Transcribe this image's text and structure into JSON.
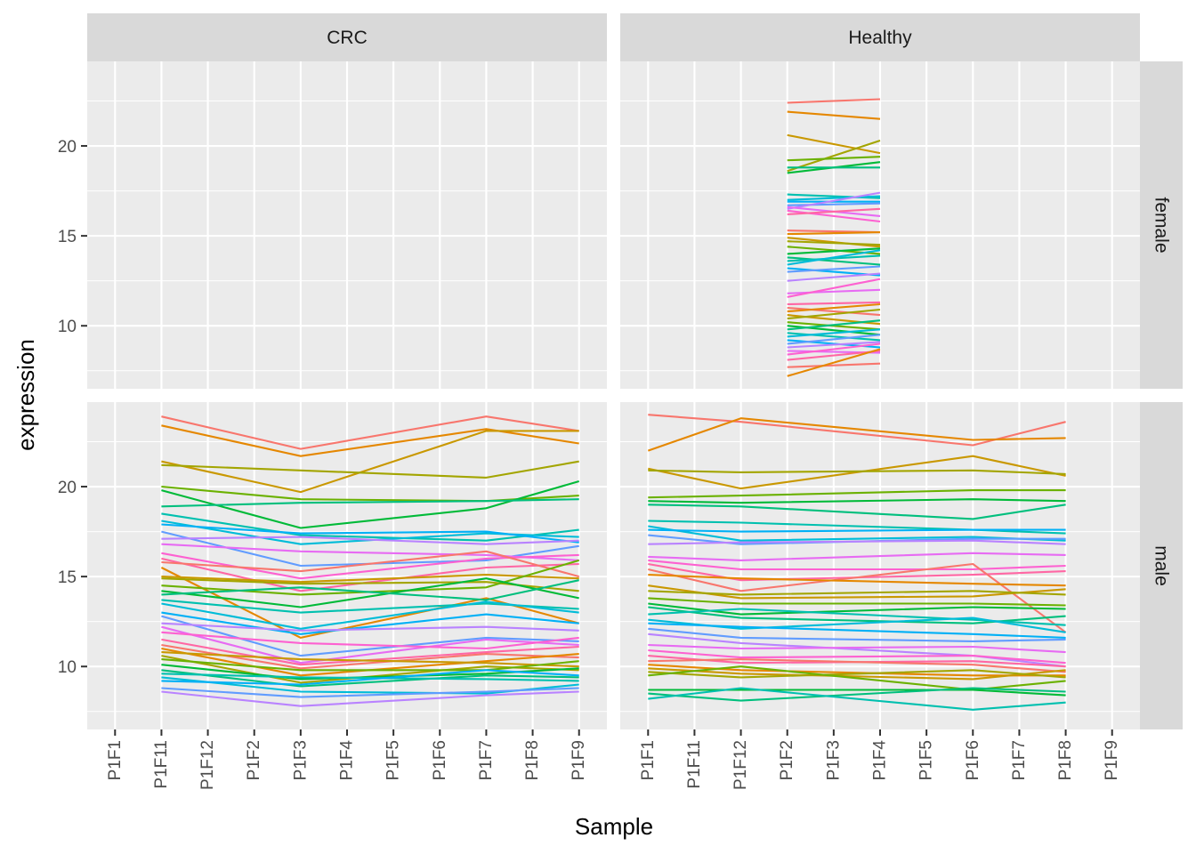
{
  "chart_data": {
    "type": "line",
    "xlabel": "Sample",
    "ylabel": "expression",
    "x_categories": [
      "P1F1",
      "P1F11",
      "P1F12",
      "P1F2",
      "P1F3",
      "P1F4",
      "P1F5",
      "P1F6",
      "P1F7",
      "P1F8",
      "P1F9"
    ],
    "y_ticks": [
      10,
      15,
      20
    ],
    "ylim": [
      6.5,
      24.7
    ],
    "grid": true,
    "legend": "none",
    "facet_columns": [
      "CRC",
      "Healthy"
    ],
    "facet_rows": [
      "female",
      "male"
    ],
    "palette": [
      "#F8766D",
      "#E58700",
      "#C99800",
      "#A3A500",
      "#6BB100",
      "#00BA38",
      "#00BF7D",
      "#00C0AF",
      "#00BCD8",
      "#00B0F6",
      "#619CFF",
      "#B983FF",
      "#E76BF3",
      "#FD61D1",
      "#FF67A4"
    ],
    "panels": [
      {
        "column": "CRC",
        "row": "female",
        "x": [],
        "series": []
      },
      {
        "column": "Healthy",
        "row": "female",
        "x": [
          "P1F2",
          "P1F4"
        ],
        "series": [
          {
            "values": [
              22.4,
              22.6
            ]
          },
          {
            "values": [
              21.9,
              21.5
            ]
          },
          {
            "values": [
              20.6,
              19.6
            ]
          },
          {
            "values": [
              18.6,
              20.3
            ]
          },
          {
            "values": [
              19.2,
              19.4
            ]
          },
          {
            "values": [
              18.5,
              19.1
            ]
          },
          {
            "values": [
              18.8,
              18.8
            ]
          },
          {
            "values": [
              17.3,
              17.1
            ]
          },
          {
            "values": [
              17.0,
              17.2
            ]
          },
          {
            "values": [
              16.9,
              16.9
            ]
          },
          {
            "values": [
              16.7,
              16.8
            ]
          },
          {
            "values": [
              16.5,
              17.4
            ]
          },
          {
            "values": [
              16.6,
              16.1
            ]
          },
          {
            "values": [
              16.4,
              15.8
            ]
          },
          {
            "values": [
              16.2,
              16.5
            ]
          },
          {
            "values": [
              15.3,
              15.2
            ]
          },
          {
            "values": [
              15.1,
              15.2
            ]
          },
          {
            "values": [
              14.9,
              14.4
            ]
          },
          {
            "values": [
              14.7,
              14.5
            ]
          },
          {
            "values": [
              14.4,
              14.0
            ]
          },
          {
            "values": [
              14.0,
              14.3
            ]
          },
          {
            "values": [
              13.8,
              13.4
            ]
          },
          {
            "values": [
              13.6,
              13.9
            ]
          },
          {
            "values": [
              13.4,
              14.2
            ]
          },
          {
            "values": [
              13.2,
              12.8
            ]
          },
          {
            "values": [
              13.0,
              13.3
            ]
          },
          {
            "values": [
              12.5,
              12.9
            ]
          },
          {
            "values": [
              11.8,
              12.0
            ]
          },
          {
            "values": [
              11.6,
              12.6
            ]
          },
          {
            "values": [
              11.2,
              11.3
            ]
          },
          {
            "values": [
              11.0,
              10.6
            ]
          },
          {
            "values": [
              10.8,
              11.2
            ]
          },
          {
            "values": [
              10.6,
              10.1
            ]
          },
          {
            "values": [
              10.4,
              10.9
            ]
          },
          {
            "values": [
              10.2,
              9.8
            ]
          },
          {
            "values": [
              10.0,
              9.5
            ]
          },
          {
            "values": [
              9.8,
              10.3
            ]
          },
          {
            "values": [
              9.6,
              9.2
            ]
          },
          {
            "values": [
              9.4,
              9.8
            ]
          },
          {
            "values": [
              9.2,
              8.8
            ]
          },
          {
            "values": [
              9.0,
              9.5
            ]
          },
          {
            "values": [
              8.8,
              9.1
            ]
          },
          {
            "values": [
              8.6,
              8.5
            ]
          },
          {
            "values": [
              8.4,
              9.0
            ]
          },
          {
            "values": [
              8.1,
              8.6
            ]
          },
          {
            "values": [
              7.7,
              7.9
            ]
          },
          {
            "values": [
              7.2,
              8.7
            ]
          }
        ]
      },
      {
        "column": "CRC",
        "row": "male",
        "x": [
          "P1F11",
          "P1F3",
          "P1F7",
          "P1F9"
        ],
        "series": [
          {
            "values": [
              23.9,
              22.1,
              23.9,
              23.1
            ]
          },
          {
            "values": [
              23.4,
              21.7,
              23.2,
              22.4
            ]
          },
          {
            "values": [
              21.4,
              19.7,
              23.1,
              23.1
            ]
          },
          {
            "values": [
              21.2,
              20.9,
              20.5,
              21.4
            ]
          },
          {
            "values": [
              20.0,
              19.3,
              19.2,
              19.5
            ]
          },
          {
            "values": [
              19.8,
              17.7,
              18.8,
              20.3
            ]
          },
          {
            "values": [
              18.9,
              19.1,
              19.2,
              19.3
            ]
          },
          {
            "values": [
              18.5,
              17.3,
              17.0,
              17.6
            ]
          },
          {
            "values": [
              18.1,
              16.8,
              17.4,
              17.2
            ]
          },
          {
            "values": [
              17.9,
              17.4,
              17.5,
              16.9
            ]
          },
          {
            "values": [
              17.5,
              15.6,
              15.9,
              16.7
            ]
          },
          {
            "values": [
              17.1,
              17.2,
              16.8,
              17.0
            ]
          },
          {
            "values": [
              16.8,
              16.4,
              16.2,
              15.9
            ]
          },
          {
            "values": [
              16.3,
              14.9,
              16.0,
              16.2
            ]
          },
          {
            "values": [
              16.0,
              14.2,
              15.5,
              15.7
            ]
          },
          {
            "values": [
              15.8,
              15.3,
              16.4,
              15.0
            ]
          },
          {
            "values": [
              15.5,
              11.6,
              13.8,
              12.4
            ]
          },
          {
            "values": [
              15.0,
              14.7,
              15.1,
              14.9
            ]
          },
          {
            "values": [
              14.9,
              14.6,
              14.7,
              14.2
            ]
          },
          {
            "values": [
              14.5,
              14.0,
              14.4,
              15.9
            ]
          },
          {
            "values": [
              14.2,
              13.3,
              14.9,
              13.8
            ]
          },
          {
            "values": [
              14.0,
              14.4,
              13.7,
              14.8
            ]
          },
          {
            "values": [
              13.7,
              13.0,
              13.5,
              13.2
            ]
          },
          {
            "values": [
              13.5,
              12.1,
              13.6,
              13.0
            ]
          },
          {
            "values": [
              13.0,
              11.8,
              12.9,
              12.4
            ]
          },
          {
            "values": [
              12.8,
              10.6,
              11.6,
              11.4
            ]
          },
          {
            "values": [
              12.4,
              12.0,
              12.2,
              12.0
            ]
          },
          {
            "values": [
              12.2,
              10.2,
              11.5,
              11.2
            ]
          },
          {
            "values": [
              11.9,
              11.3,
              11.0,
              11.6
            ]
          },
          {
            "values": [
              11.5,
              10.1,
              10.8,
              11.1
            ]
          },
          {
            "values": [
              11.2,
              9.9,
              10.7,
              10.5
            ]
          },
          {
            "values": [
              11.0,
              9.5,
              10.3,
              10.7
            ]
          },
          {
            "values": [
              10.8,
              10.4,
              10.2,
              10.0
            ]
          },
          {
            "values": [
              10.6,
              9.1,
              10.0,
              9.8
            ]
          },
          {
            "values": [
              10.4,
              9.8,
              9.8,
              10.3
            ]
          },
          {
            "values": [
              10.1,
              9.3,
              9.6,
              9.9
            ]
          },
          {
            "values": [
              9.8,
              8.9,
              9.5,
              9.4
            ]
          },
          {
            "values": [
              9.6,
              9.4,
              9.3,
              9.2
            ]
          },
          {
            "values": [
              9.4,
              8.6,
              8.5,
              9.0
            ]
          },
          {
            "values": [
              9.2,
              9.0,
              9.8,
              9.5
            ]
          },
          {
            "values": [
              8.8,
              8.3,
              8.6,
              8.8
            ]
          },
          {
            "values": [
              8.6,
              7.8,
              8.4,
              8.6
            ]
          }
        ]
      },
      {
        "column": "Healthy",
        "row": "male",
        "x": [
          "P1F1",
          "P1F12",
          "P1F6",
          "P1F8"
        ],
        "series": [
          {
            "values": [
              24.0,
              23.6,
              22.3,
              23.6
            ]
          },
          {
            "values": [
              22.0,
              23.8,
              22.6,
              22.7
            ]
          },
          {
            "values": [
              21.0,
              19.9,
              21.7,
              20.6
            ]
          },
          {
            "values": [
              20.9,
              20.8,
              20.9,
              20.7
            ]
          },
          {
            "values": [
              19.4,
              19.5,
              19.8,
              19.8
            ]
          },
          {
            "values": [
              19.2,
              19.1,
              19.3,
              19.2
            ]
          },
          {
            "values": [
              19.0,
              18.9,
              18.2,
              19.0
            ]
          },
          {
            "values": [
              18.1,
              18.0,
              17.6,
              17.4
            ]
          },
          {
            "values": [
              17.8,
              17.0,
              17.2,
              17.0
            ]
          },
          {
            "values": [
              17.6,
              17.5,
              17.6,
              17.6
            ]
          },
          {
            "values": [
              17.3,
              16.8,
              17.1,
              17.1
            ]
          },
          {
            "values": [
              16.8,
              16.9,
              17.0,
              16.8
            ]
          },
          {
            "values": [
              16.1,
              15.9,
              16.3,
              16.2
            ]
          },
          {
            "values": [
              15.9,
              15.4,
              15.4,
              15.6
            ]
          },
          {
            "values": [
              15.7,
              14.8,
              15.1,
              15.3
            ]
          },
          {
            "values": [
              15.4,
              14.2,
              15.7,
              11.9
            ]
          },
          {
            "values": [
              15.1,
              14.9,
              14.6,
              14.5
            ]
          },
          {
            "values": [
              14.5,
              13.8,
              13.9,
              14.3
            ]
          },
          {
            "values": [
              14.2,
              14.0,
              14.2,
              14.0
            ]
          },
          {
            "values": [
              13.8,
              13.5,
              13.5,
              13.4
            ]
          },
          {
            "values": [
              13.5,
              12.9,
              13.3,
              13.2
            ]
          },
          {
            "values": [
              13.3,
              12.7,
              12.4,
              12.8
            ]
          },
          {
            "values": [
              12.9,
              13.2,
              12.6,
              12.3
            ]
          },
          {
            "values": [
              12.6,
              12.1,
              12.7,
              11.9
            ]
          },
          {
            "values": [
              12.4,
              12.2,
              11.8,
              11.6
            ]
          },
          {
            "values": [
              12.1,
              11.6,
              11.4,
              11.5
            ]
          },
          {
            "values": [
              11.8,
              11.3,
              10.6,
              10.0
            ]
          },
          {
            "values": [
              11.2,
              11.0,
              11.1,
              10.8
            ]
          },
          {
            "values": [
              10.9,
              10.5,
              10.6,
              10.2
            ]
          },
          {
            "values": [
              10.6,
              10.2,
              10.3,
              10.0
            ]
          },
          {
            "values": [
              10.3,
              10.4,
              10.1,
              9.7
            ]
          },
          {
            "values": [
              10.1,
              9.8,
              9.5,
              9.5
            ]
          },
          {
            "values": [
              9.9,
              9.6,
              9.3,
              9.8
            ]
          },
          {
            "values": [
              9.7,
              9.4,
              9.8,
              9.4
            ]
          },
          {
            "values": [
              9.5,
              10.0,
              8.7,
              9.2
            ]
          },
          {
            "values": [
              8.7,
              8.7,
              8.7,
              8.4
            ]
          },
          {
            "values": [
              8.5,
              8.1,
              8.8,
              8.6
            ]
          },
          {
            "values": [
              8.2,
              8.8,
              7.6,
              8.0
            ]
          }
        ]
      }
    ]
  }
}
